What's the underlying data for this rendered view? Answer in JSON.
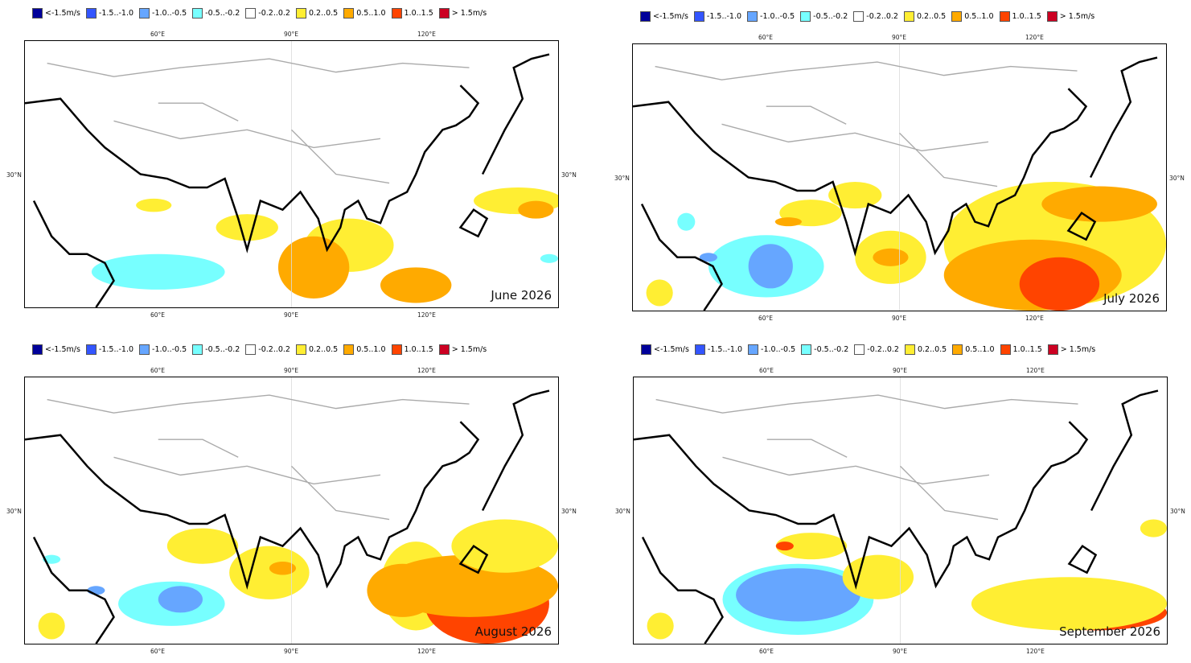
{
  "legend": [
    {
      "label": "<-1.5m/s",
      "color": "#00009a"
    },
    {
      "label": "-1.5..-1.0",
      "color": "#3355ff"
    },
    {
      "label": "-1.0..-0.5",
      "color": "#66a6ff"
    },
    {
      "label": "-0.5..-0.2",
      "color": "#77ffff"
    },
    {
      "label": "-0.2..0.2",
      "color": "#ffffff"
    },
    {
      "label": "0.2..0.5",
      "color": "#ffee33"
    },
    {
      "label": "0.5..1.0",
      "color": "#ffaa00"
    },
    {
      "label": "1.0..1.5",
      "color": "#ff4400"
    },
    {
      "label": "> 1.5m/s",
      "color": "#cc0022"
    }
  ],
  "axes": {
    "lon_ticks": [
      "60°E",
      "90°E",
      "120°E"
    ],
    "lat_tick": "30°N"
  },
  "panels": [
    {
      "title": "June 2026"
    },
    {
      "title": "July 2026"
    },
    {
      "title": "August 2026"
    },
    {
      "title": "September 2026"
    }
  ]
}
